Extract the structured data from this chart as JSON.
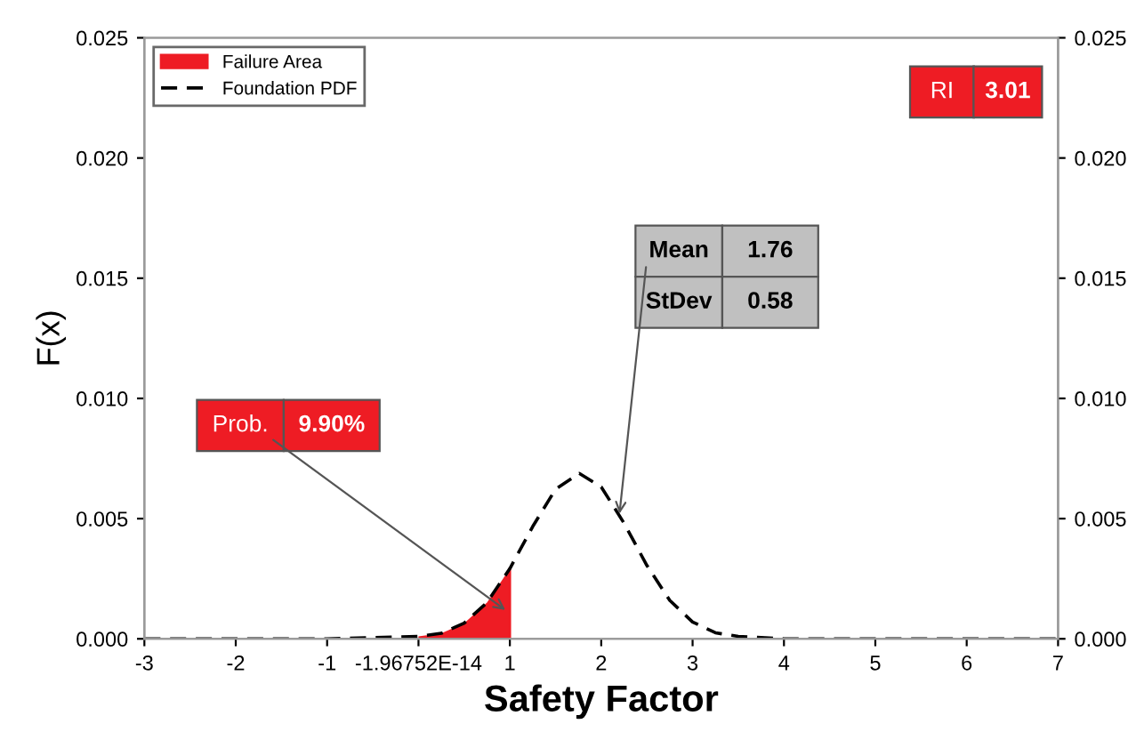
{
  "chart_data": {
    "type": "line",
    "xlabel": "Safety Factor",
    "ylabel": "F(x)",
    "series": [
      {
        "name": "Failure Area",
        "type": "area",
        "color": "#ee1c24",
        "x": [
          0,
          0.25,
          0.5,
          0.75,
          1
        ],
        "values": [
          0.0001,
          0.00023,
          0.00065,
          0.00151,
          0.00292
        ]
      },
      {
        "name": "Foundation PDF",
        "color": "#000000",
        "line_style": "dashed",
        "x": [
          -3,
          -2,
          -1,
          0,
          0.25,
          0.5,
          0.75,
          1,
          1.25,
          1.5,
          1.76,
          2,
          2.25,
          2.5,
          2.75,
          3,
          3.25,
          3.5,
          4,
          5,
          6,
          7
        ],
        "values": [
          0,
          0,
          0,
          0.0001,
          0.00023,
          0.00065,
          0.00151,
          0.00292,
          0.00467,
          0.00622,
          0.00688,
          0.00632,
          0.00481,
          0.00305,
          0.0016,
          0.0007,
          0.00025,
          0.0001,
          0,
          0,
          0,
          0
        ]
      }
    ],
    "xlim": [
      -3,
      7
    ],
    "xticks": [
      -3,
      -2,
      -1,
      {
        "value": 0,
        "label": "-1.96752E-14"
      },
      1,
      2,
      3,
      4,
      5,
      6,
      7
    ],
    "ylim": [
      0,
      0.025
    ],
    "yticks": [
      {
        "value": 0,
        "label": "0.000"
      },
      {
        "value": 0.005,
        "label": "0.005"
      },
      {
        "value": 0.01,
        "label": "0.010"
      },
      {
        "value": 0.015,
        "label": "0.015"
      },
      {
        "value": 0.02,
        "label": "0.020"
      },
      {
        "value": 0.025,
        "label": "0.025"
      }
    ],
    "y2lim": [
      0,
      0.025
    ],
    "y2ticks": [
      {
        "value": 0,
        "label": "0.000"
      },
      {
        "value": 0.005,
        "label": "0.005"
      },
      {
        "value": 0.01,
        "label": "0.010"
      },
      {
        "value": 0.015,
        "label": "0.015"
      },
      {
        "value": 0.02,
        "label": "0.020"
      },
      {
        "value": 0.025,
        "label": "0.025"
      }
    ],
    "grid": false,
    "legend": "top left",
    "marker": "none",
    "annotations": [
      {
        "text": "Prob.",
        "x": 0.95,
        "y": 0.0012
      },
      "9.90%",
      {
        "text": "Mean",
        "x": 2.2,
        "y": 0.0052
      },
      "1.76",
      "StDev",
      "0.58",
      "RI",
      "3.01"
    ]
  }
}
